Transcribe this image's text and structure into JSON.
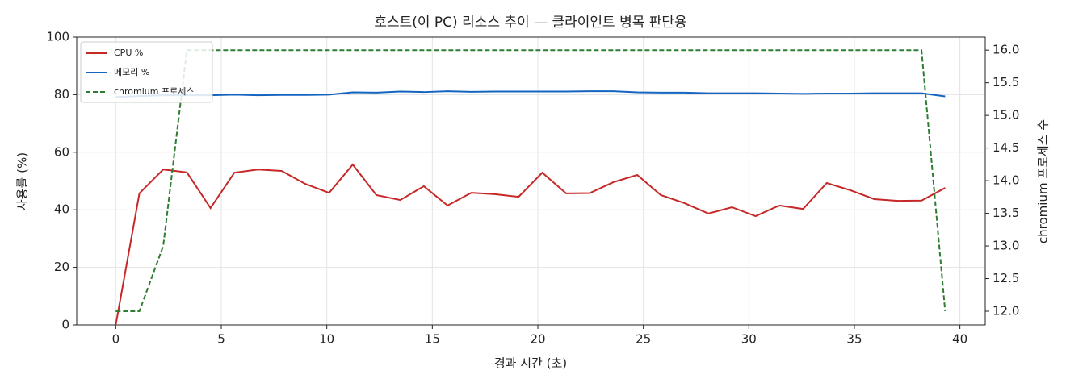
{
  "chart_data": {
    "type": "line",
    "title": "호스트(이 PC) 리소스 추이 — 클라이언트 병목 판단용",
    "xlabel": "경과 시간 (초)",
    "ylabel": "사용률 (%)",
    "y2label": "chromium 프로세스 수",
    "x": [
      0,
      1.12,
      2.25,
      3.37,
      4.49,
      5.62,
      6.74,
      7.86,
      8.98,
      10.11,
      11.23,
      12.35,
      13.48,
      14.6,
      15.72,
      16.85,
      17.97,
      19.09,
      20.21,
      21.34,
      22.46,
      23.58,
      24.71,
      25.83,
      26.95,
      28.08,
      29.2,
      30.32,
      31.44,
      32.57,
      33.69,
      34.81,
      35.94,
      37.06,
      38.18,
      39.3
    ],
    "series": [
      {
        "name": "CPU %",
        "color": "#c62828",
        "linestyle": "solid",
        "values": [
          0,
          45.7,
          54,
          53,
          40.6,
          52.9,
          54,
          53.5,
          49,
          45.9,
          55.7,
          45.1,
          43.4,
          48.2,
          41.5,
          45.9,
          45.4,
          44.5,
          52.9,
          45.7,
          45.8,
          49.6,
          52.1,
          45.1,
          42.3,
          38.7,
          40.9,
          37.8,
          41.5,
          40.3,
          49.3,
          46.8,
          43.7,
          43.1,
          43.2,
          47.6
        ]
      },
      {
        "name": "메모리 %",
        "color": "#1565c0",
        "linestyle": "solid",
        "values": [
          79.2,
          79.5,
          79.8,
          79.8,
          79.8,
          80,
          79.8,
          79.9,
          79.9,
          80,
          80.8,
          80.7,
          81.1,
          80.9,
          81.2,
          81,
          81.1,
          81.1,
          81.1,
          81.1,
          81.2,
          81.2,
          80.8,
          80.7,
          80.7,
          80.5,
          80.5,
          80.5,
          80.4,
          80.3,
          80.4,
          80.4,
          80.5,
          80.5,
          80.5,
          79.4
        ]
      },
      {
        "name": "chromium 프로세스",
        "color": "#2e7d32",
        "linestyle": "dashed",
        "axis": "y2",
        "values": [
          12,
          12,
          13,
          16,
          16,
          16,
          16,
          16,
          16,
          16,
          16,
          16,
          16,
          16,
          16,
          16,
          16,
          16,
          16,
          16,
          16,
          16,
          16,
          16,
          16,
          16,
          16,
          16,
          16,
          16,
          16,
          16,
          16,
          16,
          16,
          12
        ]
      }
    ],
    "xlim": [
      -1.85,
      41.2
    ],
    "xticks": [
      0,
      5,
      10,
      15,
      20,
      25,
      30,
      35,
      40
    ],
    "ylim": [
      0,
      100
    ],
    "yticks": [
      0,
      20,
      40,
      60,
      80,
      100
    ],
    "y2lim": [
      11.79,
      16.2
    ],
    "y2ticks": [
      {
        "value": 12,
        "label": "12.0"
      },
      12.5,
      {
        "value": 13,
        "label": "13.0"
      },
      13.5,
      {
        "value": 14,
        "label": "14.0"
      },
      14.5,
      {
        "value": 15,
        "label": "15.0"
      },
      15.5,
      {
        "value": 16,
        "label": "16.0"
      }
    ],
    "grid": true,
    "legend": "upper left"
  }
}
